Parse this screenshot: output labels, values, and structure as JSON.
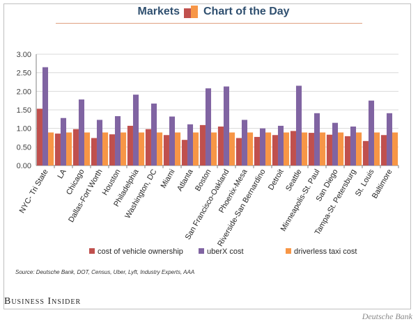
{
  "header": {
    "left": "Markets",
    "right": "Chart of the Day"
  },
  "source": "Source: Deutsche Bank, DOT, Census, Uber, Lyft, Industry Experts, AAA",
  "brand": "Business Insider",
  "credit": "Deutsche Bank",
  "colors": {
    "ownership": "#c0504d",
    "uberx": "#8064a2",
    "driverless": "#f79646",
    "gridline": "#d9d9d9",
    "axis": "#808080"
  },
  "chart_data": {
    "type": "bar",
    "categories": [
      "NYC- Tri State",
      "LA",
      "Chicago",
      "Dallas-Fort Worth",
      "Houston",
      "Philadelphia",
      "Washington, DC",
      "Miami",
      "Atlanta",
      "Boston",
      "San Francisco-Oakland",
      "Phoenix-Mesa",
      "Riverside-San Bernardino",
      "Detroit",
      "Seattle",
      "Minneapolis-St. Paul",
      "San Diego",
      "Tampa-St. Petersburg",
      "St. Louis",
      "Baltimore"
    ],
    "series": [
      {
        "name": "cost of vehicle ownership",
        "color": "#c0504d",
        "values": [
          1.53,
          0.86,
          0.98,
          0.74,
          0.84,
          1.07,
          0.98,
          0.82,
          0.69,
          1.09,
          1.05,
          0.74,
          0.77,
          0.82,
          0.93,
          0.88,
          0.83,
          0.79,
          0.66,
          0.82
        ]
      },
      {
        "name": "uberX cost",
        "color": "#8064a2",
        "values": [
          2.65,
          1.28,
          1.78,
          1.23,
          1.33,
          1.91,
          1.67,
          1.32,
          1.11,
          2.08,
          2.13,
          1.23,
          1.0,
          1.07,
          2.15,
          1.41,
          1.15,
          1.05,
          1.75,
          1.41
        ]
      },
      {
        "name": "driverless taxi cost",
        "color": "#f79646",
        "values": [
          0.89,
          0.89,
          0.89,
          0.89,
          0.89,
          0.89,
          0.89,
          0.89,
          0.89,
          0.89,
          0.89,
          0.89,
          0.89,
          0.89,
          0.89,
          0.89,
          0.89,
          0.89,
          0.89,
          0.89
        ]
      }
    ],
    "ylim": [
      0,
      3.0
    ],
    "yticks": [
      "0.00",
      "0.50",
      "1.00",
      "1.50",
      "2.00",
      "2.50",
      "3.00"
    ],
    "ytick_values": [
      0,
      0.5,
      1.0,
      1.5,
      2.0,
      2.5,
      3.0
    ],
    "grid": true,
    "legend_position": "bottom"
  }
}
